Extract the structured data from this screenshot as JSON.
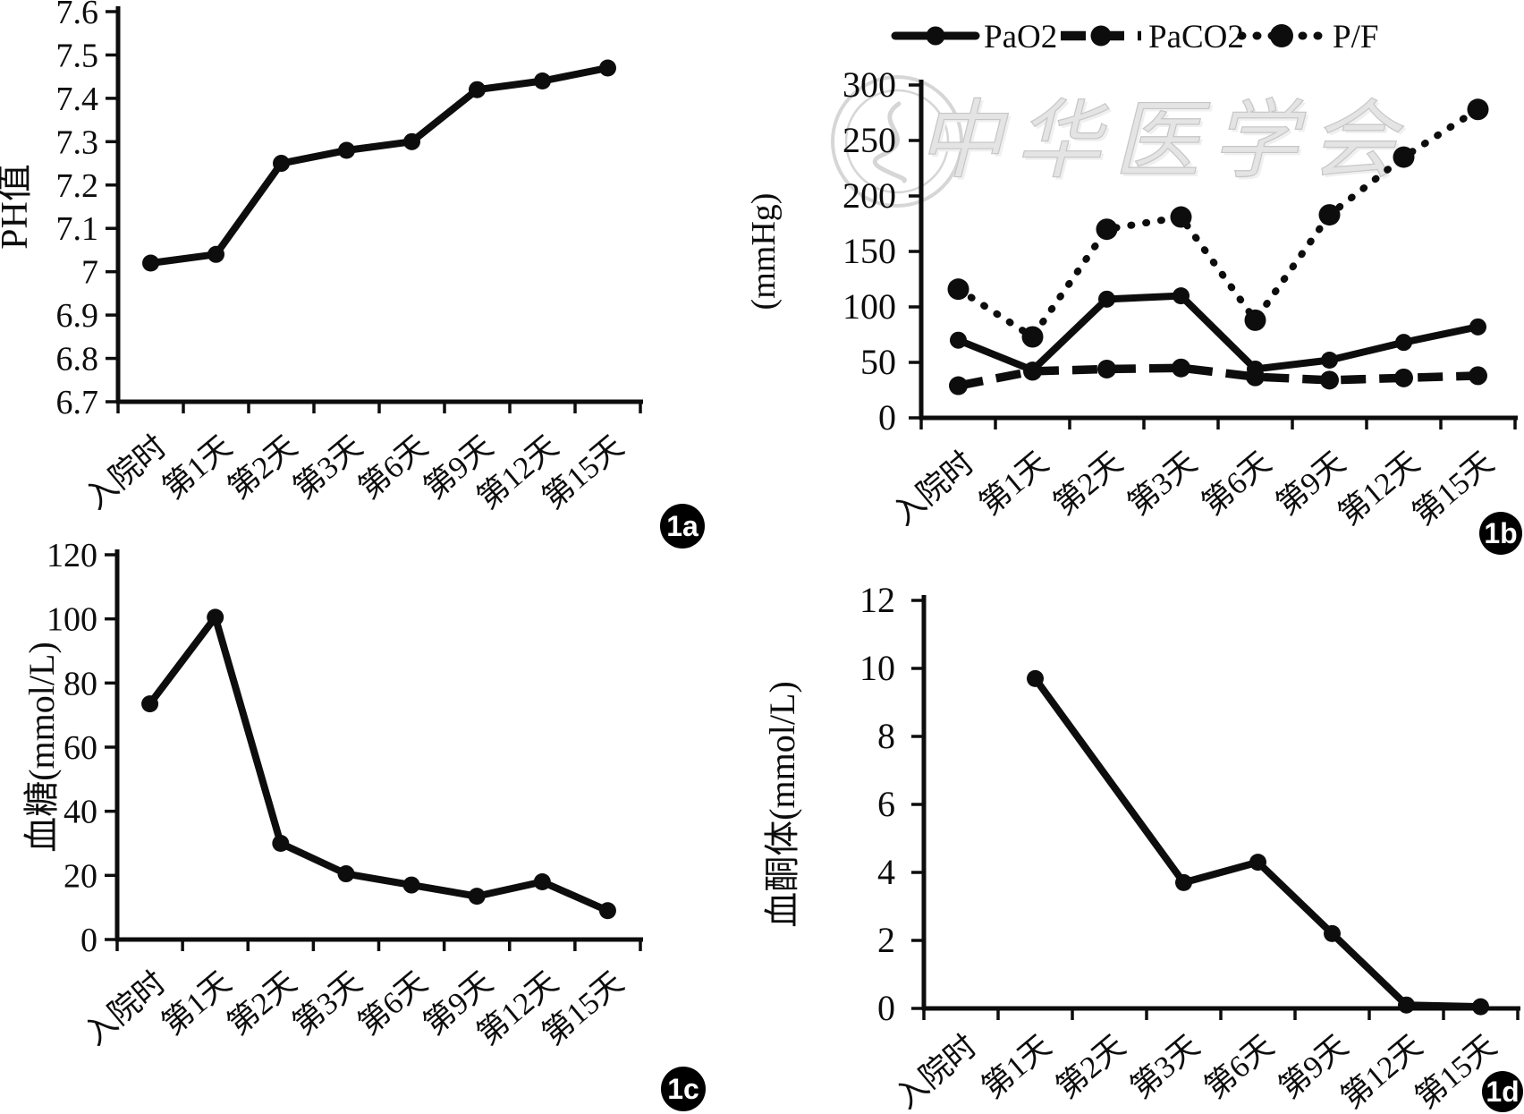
{
  "colors": {
    "ink": "#0d0d0d",
    "watermark": "#d6d6d6",
    "watermark_text_fill": "#e4e4e4",
    "watermark_text_stroke": "#c6c6c6",
    "badge_bg": "#000000",
    "badge_fg": "#ffffff",
    "background": "#ffffff"
  },
  "chart_data": [
    {
      "id": "1a",
      "type": "line",
      "title": "",
      "xlabel": "",
      "ylabel": "PH值",
      "badge": "1a",
      "grid": false,
      "categories": [
        "入院时",
        "第1天",
        "第2天",
        "第3天",
        "第6天",
        "第9天",
        "第12天",
        "第15天"
      ],
      "ylim": [
        6.7,
        7.6
      ],
      "yticks": {
        "values": [
          6.7,
          6.8,
          6.9,
          7.0,
          7.1,
          7.2,
          7.3,
          7.4,
          7.5,
          7.6
        ],
        "labels": [
          "6.7",
          "6.8",
          "6.9",
          "7",
          "7.1",
          "7.2",
          "7.3",
          "7.4",
          "7.5",
          "7.6"
        ]
      },
      "series": [
        {
          "name": "PH值",
          "style": "solid",
          "values": [
            7.02,
            7.04,
            7.25,
            7.28,
            7.3,
            7.42,
            7.44,
            7.47
          ]
        }
      ]
    },
    {
      "id": "1b",
      "type": "line",
      "title": "",
      "xlabel": "",
      "ylabel": "(mmHg)",
      "badge": "1b",
      "grid": false,
      "legend": {
        "position": "top"
      },
      "watermark": {
        "emblem": "medical-association-emblem",
        "text": "中华医学会"
      },
      "categories": [
        "入院时",
        "第1天",
        "第2天",
        "第3天",
        "第6天",
        "第9天",
        "第12天",
        "第15天"
      ],
      "ylim": [
        0,
        300
      ],
      "yticks": {
        "values": [
          0,
          50,
          100,
          150,
          200,
          250,
          300
        ],
        "labels": [
          "0",
          "50",
          "100",
          "150",
          "200",
          "250",
          "300"
        ]
      },
      "series": [
        {
          "name": "PaO2",
          "style": "solid",
          "values": [
            70,
            43,
            107,
            110,
            44,
            52,
            68,
            82
          ]
        },
        {
          "name": "PaCO2",
          "style": "dashed",
          "values": [
            29,
            42,
            44,
            45,
            37,
            34,
            36,
            38
          ]
        },
        {
          "name": "P/F",
          "style": "dotted",
          "values": [
            116,
            73,
            170,
            181,
            88,
            183,
            235,
            278
          ]
        }
      ]
    },
    {
      "id": "1c",
      "type": "line",
      "title": "",
      "xlabel": "",
      "ylabel": "血糖(mmol/L)",
      "badge": "1c",
      "grid": false,
      "categories": [
        "入院时",
        "第1天",
        "第2天",
        "第3天",
        "第6天",
        "第9天",
        "第12天",
        "第15天"
      ],
      "ylim": [
        0,
        120
      ],
      "yticks": {
        "values": [
          0,
          20,
          40,
          60,
          80,
          100,
          120
        ],
        "labels": [
          "0",
          "20",
          "40",
          "60",
          "80",
          "100",
          "120"
        ]
      },
      "series": [
        {
          "name": "血糖",
          "style": "solid",
          "values": [
            73.5,
            100.5,
            30,
            20.5,
            17,
            13.5,
            18,
            9
          ]
        }
      ]
    },
    {
      "id": "1d",
      "type": "line",
      "title": "",
      "xlabel": "",
      "ylabel": "血酮体(mmol/L)",
      "badge": "1d",
      "grid": false,
      "categories": [
        "入院时",
        "第1天",
        "第2天",
        "第3天",
        "第6天",
        "第9天",
        "第12天",
        "第15天"
      ],
      "ylim": [
        0,
        12
      ],
      "yticks": {
        "values": [
          0,
          2,
          4,
          6,
          8,
          10,
          12
        ],
        "labels": [
          "0",
          "2",
          "4",
          "6",
          "8",
          "10",
          "12"
        ]
      },
      "series": [
        {
          "name": "血酮体",
          "style": "solid",
          "values": [
            null,
            9.7,
            null,
            3.7,
            4.3,
            2.2,
            0.1,
            0.05
          ]
        }
      ]
    }
  ]
}
